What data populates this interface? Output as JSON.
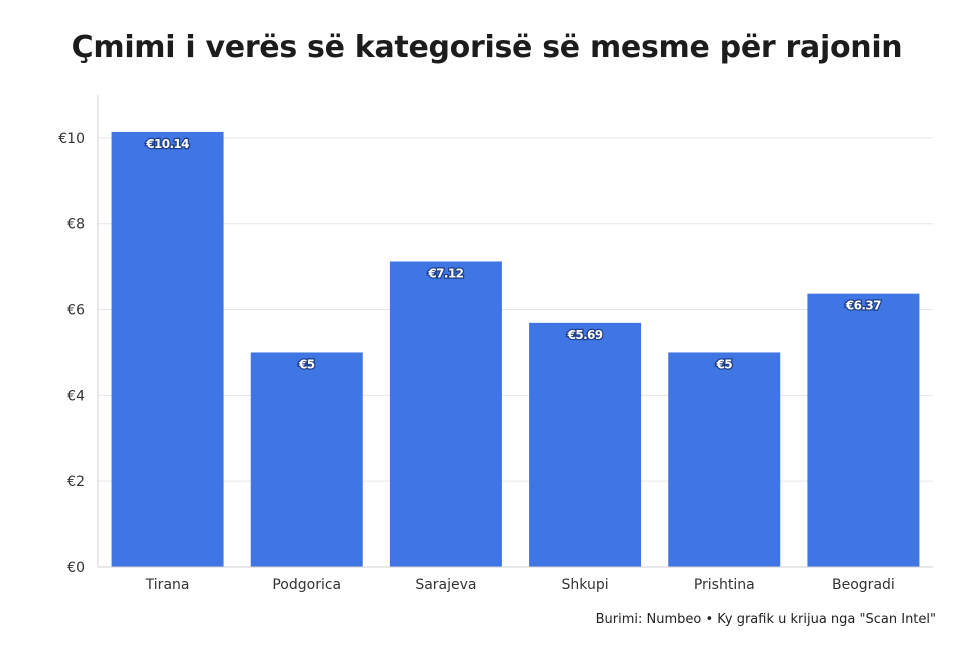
{
  "title": "Çmimi i verës së kategorisë së mesme për rajonin",
  "source_text": "Burimi: Numbeo • Ky grafik u krijua nga \"Scan Intel\"",
  "colors": {
    "bar": "#3f76e4",
    "grid": "#e6e6e6",
    "axis": "#d0d0d0"
  },
  "chart_data": {
    "type": "bar",
    "categories": [
      "Tirana",
      "Podgorica",
      "Sarajeva",
      "Shkupi",
      "Prishtina",
      "Beogradi"
    ],
    "values": [
      10.14,
      5,
      7.12,
      5.69,
      5,
      6.37
    ],
    "data_labels": [
      "€10.14",
      "€5",
      "€7.12",
      "€5.69",
      "€5",
      "€6.37"
    ],
    "yticks": [
      0,
      2,
      4,
      6,
      8,
      10
    ],
    "ytick_labels": [
      "€0",
      "€2",
      "€4",
      "€6",
      "€8",
      "€10"
    ],
    "ylim": [
      0,
      11
    ],
    "grid": true,
    "legend": "none"
  }
}
